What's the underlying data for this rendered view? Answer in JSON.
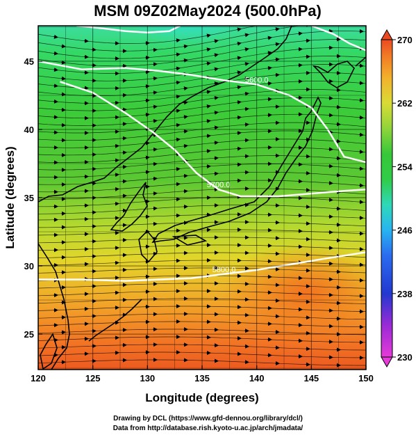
{
  "title": "MSM 09Z02May2024 (500.0hPa)",
  "xlabel": "Longitude (degrees)",
  "ylabel": "Latitude  (degrees)",
  "credits": {
    "line1": "Drawing by DCL (https://www.gfd-dennou.org/library/dcl/)",
    "line2": "Data from http://database.rish.kyoto-u.ac.jp/arch/jmadata/"
  },
  "chart_data": {
    "type": "heatmap",
    "xlim": [
      120,
      150
    ],
    "ylim": [
      22.4,
      47.6
    ],
    "xticks": [
      120,
      125,
      130,
      135,
      140,
      145,
      150
    ],
    "yticks": [
      25,
      30,
      35,
      40,
      45
    ],
    "grid": true,
    "colorbar": {
      "min": 230,
      "max": 270,
      "ticks": [
        230,
        238,
        246,
        254,
        262,
        270
      ],
      "placement": "right"
    },
    "contours": [
      {
        "label": "5600.0",
        "lon": [
          120,
          124,
          128,
          131,
          134,
          137,
          140,
          143,
          145,
          146.5,
          148,
          150
        ],
        "lat": [
          45.0,
          44.4,
          44.5,
          44.3,
          44.0,
          43.6,
          43.3,
          42.5,
          41.6,
          40.0,
          38.0,
          37.6
        ]
      },
      {
        "label": "5700.0",
        "lon": [
          122,
          125,
          128,
          130.5,
          132.5,
          134.5,
          136.5,
          138.5,
          140,
          142,
          145,
          148,
          150
        ],
        "lat": [
          43.5,
          42.7,
          41.2,
          39.8,
          38.5,
          36.8,
          35.6,
          35.1,
          35.1,
          35.1,
          35.3,
          35.5,
          35.6
        ]
      },
      {
        "label": "5800.0",
        "lon": [
          120,
          124,
          128,
          131,
          134,
          137,
          140,
          143,
          146,
          150
        ],
        "lat": [
          29.0,
          29.0,
          28.9,
          29.0,
          29.1,
          29.4,
          29.7,
          30.1,
          30.5,
          31.0
        ]
      },
      {
        "label": "",
        "lon": [
          123.5,
          126,
          128,
          130,
          132,
          133
        ],
        "lat": [
          47.6,
          47.4,
          47.2,
          47.1,
          47.2,
          47.6
        ]
      },
      {
        "label": "",
        "lon": [
          145,
          147,
          148.5,
          150
        ],
        "lat": [
          47.6,
          47.0,
          46.3,
          45.8
        ]
      }
    ]
  }
}
